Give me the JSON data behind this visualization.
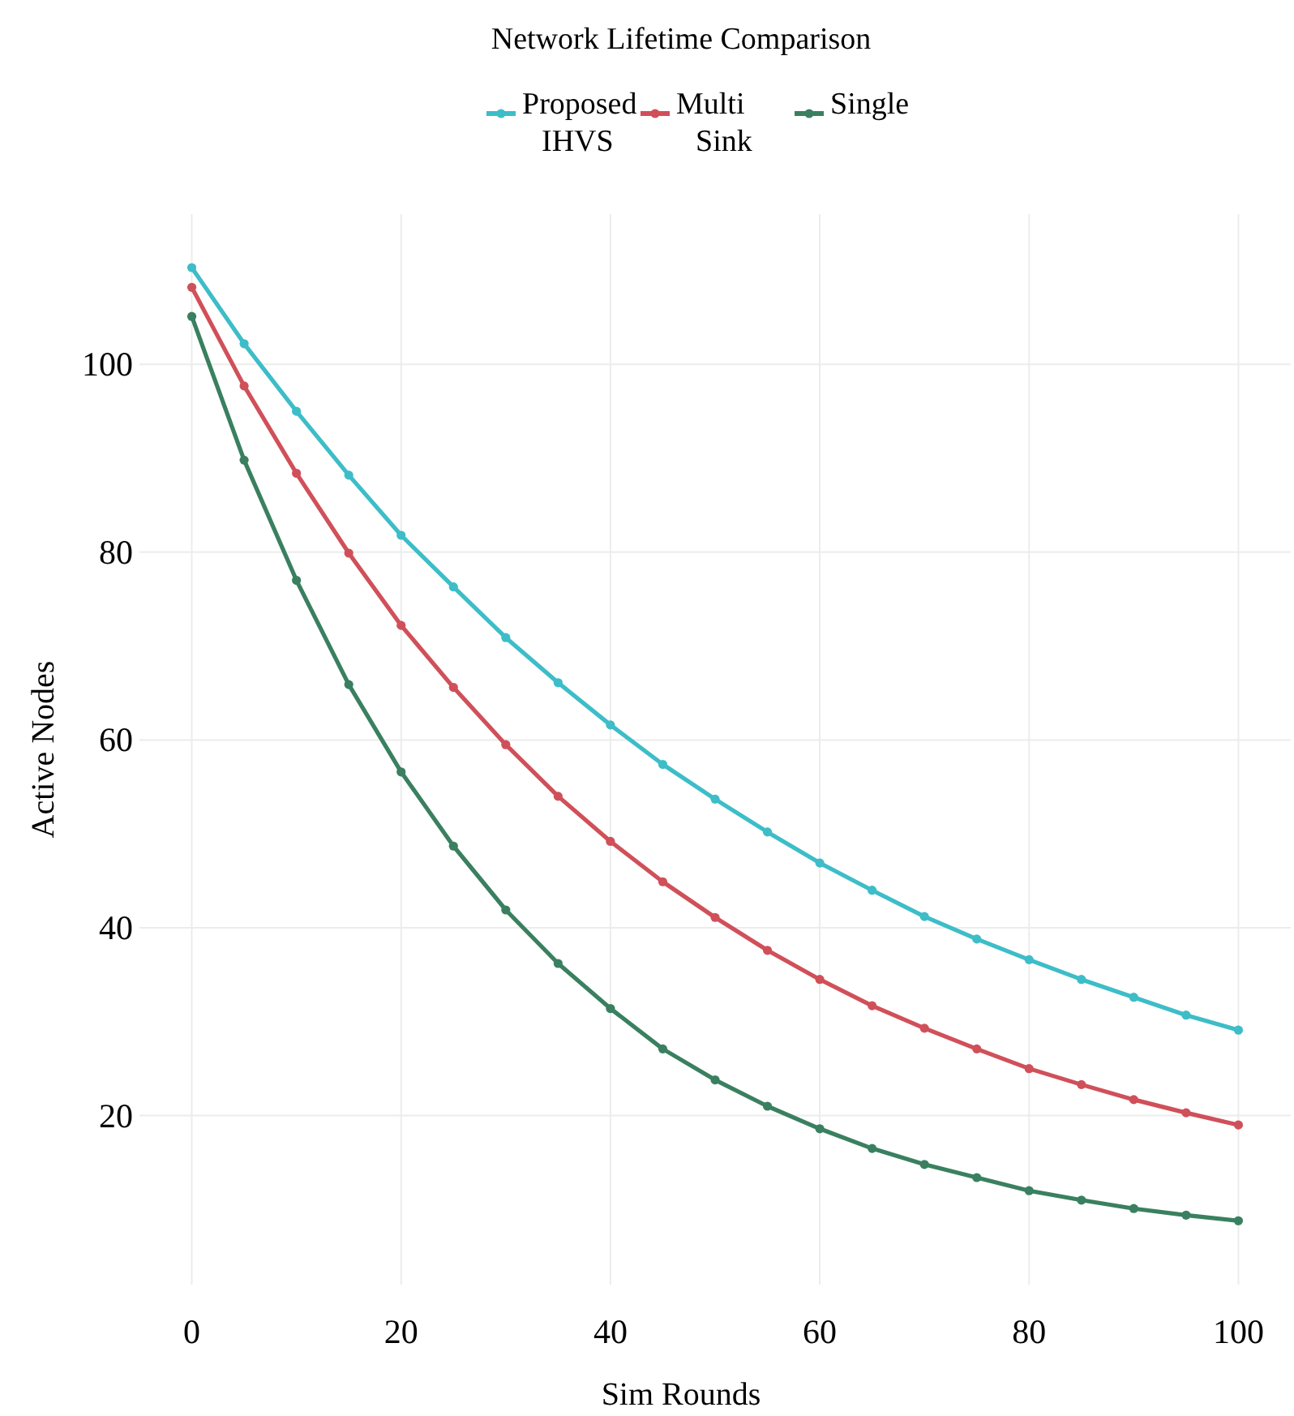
{
  "chart_data": {
    "type": "line",
    "title": "Network Lifetime Comparison",
    "xlabel": "Sim Rounds",
    "ylabel": "Active Nodes",
    "x": [
      0,
      5,
      10,
      15,
      20,
      25,
      30,
      35,
      40,
      45,
      50,
      55,
      60,
      65,
      70,
      75,
      80,
      85,
      90,
      95,
      100
    ],
    "series": [
      {
        "name": "Proposed IHVS",
        "color": "#3dbdc8",
        "values": [
          110.3,
          102.2,
          95,
          88.2,
          81.8,
          76.3,
          70.9,
          66.1,
          61.6,
          57.4,
          53.7,
          50.2,
          46.9,
          44,
          41.2,
          38.8,
          36.6,
          34.5,
          32.6,
          30.7,
          29.1
        ]
      },
      {
        "name": "Multi Sink",
        "color": "#d0505a",
        "values": [
          108.2,
          97.7,
          88.4,
          79.9,
          72.2,
          65.6,
          59.5,
          54,
          49.2,
          44.9,
          41.1,
          37.6,
          34.5,
          31.7,
          29.3,
          27.1,
          25,
          23.3,
          21.7,
          20.3,
          19
        ]
      },
      {
        "name": "Single",
        "color": "#3a8060",
        "values": [
          105.1,
          89.8,
          77,
          65.9,
          56.6,
          48.7,
          41.9,
          36.2,
          31.4,
          27.1,
          23.8,
          21,
          18.6,
          16.5,
          14.8,
          13.4,
          12,
          11,
          10.1,
          9.4,
          8.8
        ]
      }
    ],
    "xlim": [
      -5,
      105
    ],
    "ylim": [
      2,
      116
    ],
    "xticks": [
      0,
      20,
      40,
      60,
      80,
      100
    ],
    "yticks": [
      20,
      40,
      60,
      80,
      100
    ],
    "grid": true,
    "legend": "top",
    "marker": "circle",
    "line_style": "solid"
  }
}
